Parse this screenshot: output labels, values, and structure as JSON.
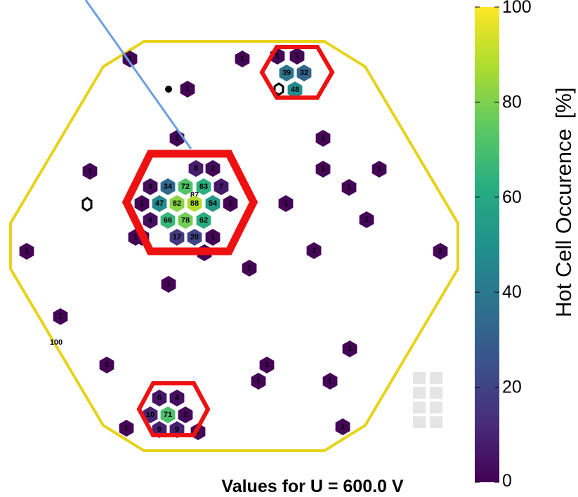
{
  "chart_data": {
    "type": "heatmap",
    "subtitle": "Values for U = 600.0 V",
    "colorbar": {
      "label": "Hot Cell Occurence",
      "unit": "[%]",
      "range": [
        0,
        100
      ],
      "ticks": [
        "0",
        "20",
        "40",
        "60",
        "80",
        "100"
      ],
      "colormap": "viridis"
    },
    "extra_label": "100",
    "cells": [
      {
        "v": 39,
        "label": "39"
      },
      {
        "v": 32,
        "label": "32"
      },
      {
        "v": 48,
        "label": "48"
      },
      {
        "v": 1,
        "label": "1"
      },
      {
        "v": 1,
        "label": "1"
      },
      {
        "v": 1,
        "label": "1"
      },
      {
        "v": 1,
        "label": "1"
      },
      {
        "v": 1,
        "label": "1"
      },
      {
        "v": 8,
        "label": "8"
      },
      {
        "v": 2,
        "label": "2"
      },
      {
        "v": 3,
        "label": "3"
      },
      {
        "v": 34,
        "label": "34"
      },
      {
        "v": 72,
        "label": "72"
      },
      {
        "v": 63,
        "label": "63"
      },
      {
        "v": 7,
        "label": "7"
      },
      {
        "v": 87,
        "label": "87"
      },
      {
        "v": 1,
        "label": "1"
      },
      {
        "v": 47,
        "label": "47"
      },
      {
        "v": 82,
        "label": "82"
      },
      {
        "v": 88,
        "label": "88"
      },
      {
        "v": 54,
        "label": "54"
      },
      {
        "v": 1,
        "label": "1"
      },
      {
        "v": 4,
        "label": "4"
      },
      {
        "v": 66,
        "label": "66"
      },
      {
        "v": 78,
        "label": "78"
      },
      {
        "v": 62,
        "label": "62"
      },
      {
        "v": 1,
        "label": "1"
      },
      {
        "v": 17,
        "label": "17"
      },
      {
        "v": 20,
        "label": "20"
      },
      {
        "v": 1,
        "label": "1"
      },
      {
        "v": 6,
        "label": "6"
      },
      {
        "v": 4,
        "label": "4"
      },
      {
        "v": 10,
        "label": "10"
      },
      {
        "v": 71,
        "label": "71"
      },
      {
        "v": 2,
        "label": "2"
      },
      {
        "v": 9,
        "label": "9"
      },
      {
        "v": 9,
        "label": "9"
      },
      {
        "v": 1,
        "label": "1"
      },
      {
        "v": 1,
        "label": "1"
      },
      {
        "v": 1,
        "label": "1"
      },
      {
        "v": 1,
        "label": "1"
      },
      {
        "v": 1,
        "label": "1"
      },
      {
        "v": 1,
        "label": "1"
      },
      {
        "v": 1,
        "label": "1"
      },
      {
        "v": 1,
        "label": "1"
      },
      {
        "v": 1,
        "label": "1"
      },
      {
        "v": 1,
        "label": "1"
      },
      {
        "v": 1,
        "label": "1"
      },
      {
        "v": 1,
        "label": "1"
      },
      {
        "v": 1,
        "label": "1"
      },
      {
        "v": 1,
        "label": "1"
      },
      {
        "v": 1,
        "label": "1"
      },
      {
        "v": 1,
        "label": "1"
      },
      {
        "v": 1,
        "label": "1"
      },
      {
        "v": 1,
        "label": "1"
      },
      {
        "v": 1,
        "label": "1"
      },
      {
        "v": 1,
        "label": "1"
      },
      {
        "v": 1,
        "label": "1"
      },
      {
        "v": 1,
        "label": "1"
      },
      {
        "v": 1,
        "label": "1"
      },
      {
        "v": 2,
        "label": "2"
      },
      {
        "v": 2,
        "label": "2"
      }
    ],
    "outline_color": "#e6d31a",
    "highlight_color": "#ee1111",
    "pointer_line_color": "#6b9fe0"
  }
}
